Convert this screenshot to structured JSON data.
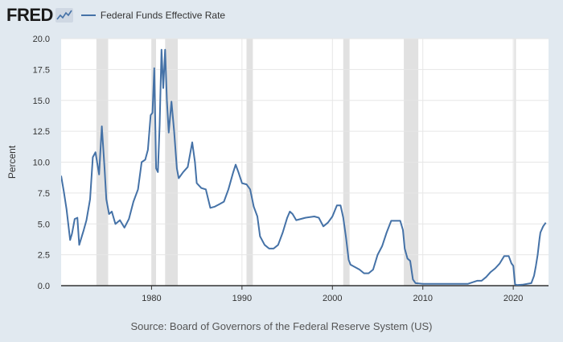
{
  "header": {
    "logo_text": "FRED",
    "logo_icon": "fred-chart-icon",
    "legend_label": "Federal Funds Effective Rate"
  },
  "source_text": "Source: Board of Governors of the Federal Reserve System (US)",
  "colors": {
    "line": "#4572a7",
    "background": "#e1e9f0",
    "plot_background": "#ffffff",
    "recession": "#e1e1e1",
    "grid": "#e6e6e6"
  },
  "chart_data": {
    "type": "line",
    "title": "",
    "ylabel": "Percent",
    "xlabel": "",
    "xlim": [
      1970.0,
      2023.9
    ],
    "ylim": [
      0,
      20
    ],
    "y_ticks": [
      "0.0",
      "2.5",
      "5.0",
      "7.5",
      "10.0",
      "12.5",
      "15.0",
      "17.5",
      "20.0"
    ],
    "x_ticks": [
      "1980",
      "1990",
      "2000",
      "2010",
      "2020"
    ],
    "grid": true,
    "recessions": [
      [
        1973.9,
        1975.2
      ],
      [
        1980.0,
        1980.5
      ],
      [
        1981.5,
        1982.9
      ],
      [
        1990.5,
        1991.2
      ],
      [
        2001.2,
        2001.9
      ],
      [
        2007.9,
        2009.5
      ],
      [
        2020.1,
        2020.3
      ]
    ],
    "series": [
      {
        "name": "Federal Funds Effective Rate",
        "x": [
          1970.0,
          1970.3,
          1970.6,
          1971.0,
          1971.2,
          1971.5,
          1971.8,
          1972.0,
          1972.5,
          1972.8,
          1973.2,
          1973.5,
          1973.8,
          1974.2,
          1974.5,
          1974.8,
          1975.0,
          1975.3,
          1975.6,
          1976.0,
          1976.5,
          1977.0,
          1977.5,
          1978.0,
          1978.5,
          1978.9,
          1979.3,
          1979.6,
          1979.9,
          1980.1,
          1980.3,
          1980.5,
          1980.7,
          1980.9,
          1981.1,
          1981.3,
          1981.5,
          1981.7,
          1981.9,
          1982.2,
          1982.5,
          1982.8,
          1983.0,
          1983.5,
          1984.0,
          1984.5,
          1984.8,
          1985.0,
          1985.5,
          1986.0,
          1986.5,
          1987.0,
          1987.5,
          1988.0,
          1988.5,
          1989.0,
          1989.3,
          1989.6,
          1990.0,
          1990.5,
          1990.9,
          1991.3,
          1991.7,
          1992.0,
          1992.5,
          1993.0,
          1993.5,
          1994.0,
          1994.5,
          1995.0,
          1995.3,
          1995.6,
          1996.0,
          1997.0,
          1998.0,
          1998.5,
          1999.0,
          1999.5,
          2000.0,
          2000.5,
          2000.9,
          2001.2,
          2001.5,
          2001.8,
          2002.0,
          2003.0,
          2003.5,
          2004.0,
          2004.5,
          2005.0,
          2005.5,
          2006.0,
          2006.5,
          2007.0,
          2007.5,
          2007.8,
          2008.0,
          2008.3,
          2008.6,
          2008.9,
          2009.2,
          2010.0,
          2012.0,
          2015.0,
          2016.0,
          2016.5,
          2017.0,
          2017.5,
          2018.0,
          2018.5,
          2019.0,
          2019.5,
          2019.8,
          2020.0,
          2020.2,
          2020.4,
          2021.0,
          2022.0,
          2022.3,
          2022.5,
          2022.7,
          2022.9,
          2023.0,
          2023.3,
          2023.6
        ],
        "values": [
          8.9,
          7.6,
          6.2,
          3.7,
          4.2,
          5.4,
          5.5,
          3.3,
          4.5,
          5.3,
          7.0,
          10.4,
          10.8,
          9.0,
          12.9,
          9.5,
          7.0,
          5.8,
          6.0,
          5.0,
          5.3,
          4.7,
          5.4,
          6.8,
          7.8,
          10.0,
          10.2,
          11.0,
          13.8,
          14.0,
          17.6,
          9.5,
          9.2,
          13.0,
          19.1,
          16.0,
          19.1,
          15.0,
          12.4,
          14.9,
          12.5,
          9.5,
          8.7,
          9.2,
          9.6,
          11.6,
          10.0,
          8.3,
          7.9,
          7.8,
          6.3,
          6.4,
          6.6,
          6.8,
          7.8,
          9.1,
          9.8,
          9.2,
          8.3,
          8.2,
          7.8,
          6.4,
          5.6,
          4.0,
          3.3,
          3.0,
          3.0,
          3.3,
          4.3,
          5.5,
          6.0,
          5.8,
          5.3,
          5.5,
          5.6,
          5.5,
          4.8,
          5.1,
          5.6,
          6.5,
          6.5,
          5.5,
          3.9,
          2.1,
          1.7,
          1.3,
          1.0,
          1.0,
          1.3,
          2.5,
          3.2,
          4.3,
          5.25,
          5.25,
          5.25,
          4.5,
          3.0,
          2.2,
          2.0,
          0.5,
          0.2,
          0.15,
          0.15,
          0.15,
          0.4,
          0.4,
          0.7,
          1.1,
          1.4,
          1.8,
          2.4,
          2.4,
          1.8,
          1.6,
          0.1,
          0.05,
          0.08,
          0.2,
          0.8,
          1.6,
          2.5,
          3.8,
          4.3,
          4.8,
          5.1
        ]
      }
    ]
  }
}
